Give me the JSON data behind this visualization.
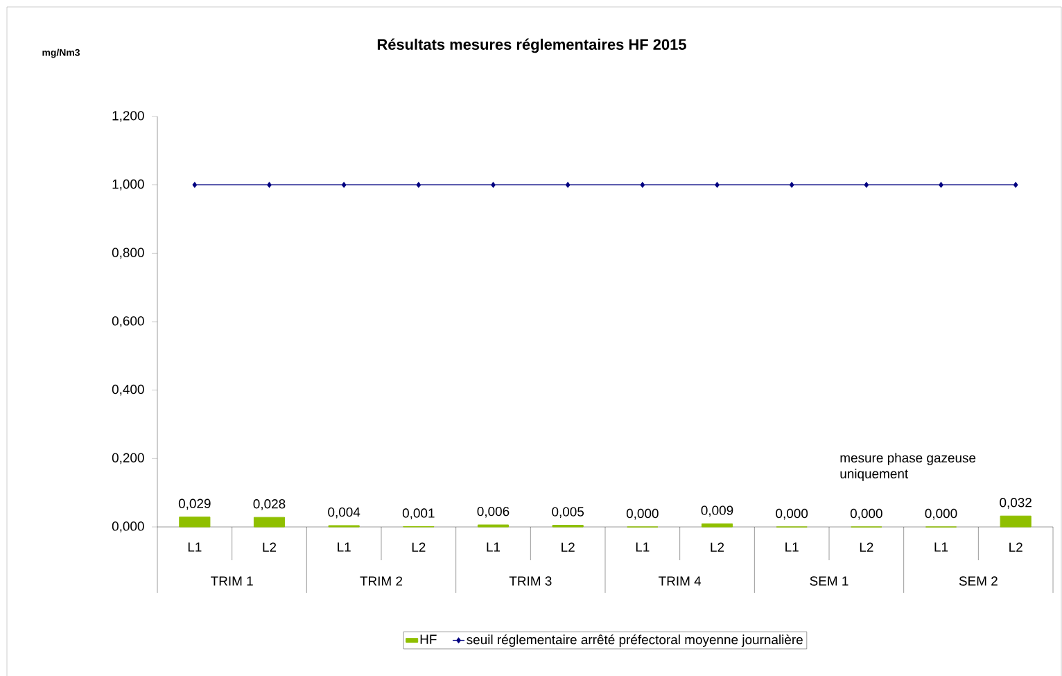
{
  "chart_data": {
    "type": "bar",
    "title": "Résultats mesures réglementaires HF 2015",
    "categories": [
      "L1",
      "L2",
      "L1",
      "L2",
      "L1",
      "L2",
      "L1",
      "L2",
      "L1",
      "L2",
      "L1",
      "L2"
    ],
    "series": [
      {
        "name": "HF",
        "type": "bar",
        "color": "#8fbf00",
        "values": [
          0.029,
          0.028,
          0.004,
          0.001,
          0.006,
          0.005,
          0.0,
          0.009,
          0.0,
          0.0,
          0.0,
          0.032
        ],
        "value_labels": [
          "0,029",
          "0,028",
          "0,004",
          "0,001",
          "0,006",
          "0,005",
          "0,000",
          "0,009",
          "0,000",
          "0,000",
          "0,000",
          "0,032"
        ]
      },
      {
        "name": "seuil réglementaire arrêté préfectoral moyenne journalière",
        "type": "line",
        "color": "#000080",
        "marker": "diamond",
        "values": [
          1.0,
          1.0,
          1.0,
          1.0,
          1.0,
          1.0,
          1.0,
          1.0,
          1.0,
          1.0,
          1.0,
          1.0
        ]
      }
    ],
    "ylim": [
      0,
      1.2
    ],
    "yticks": [
      {
        "value": 0,
        "label": "0,000"
      },
      {
        "value": 0.2,
        "label": "0,200"
      },
      {
        "value": 0.4,
        "label": "0,400"
      },
      {
        "value": 0.6,
        "label": "0,600"
      },
      {
        "value": 0.8,
        "label": "0,800"
      },
      {
        "value": 1.0,
        "label": "1,000"
      },
      {
        "value": 1.2,
        "label": "1,200"
      }
    ],
    "annotations": [
      "TRIM 1",
      "TRIM 2",
      "TRIM 3",
      "TRIM 4",
      "SEM 1",
      "SEM 2",
      "mesure phase gazeuse uniquement",
      "mg/Nm3"
    ],
    "legend": "bottom",
    "grid": false
  }
}
